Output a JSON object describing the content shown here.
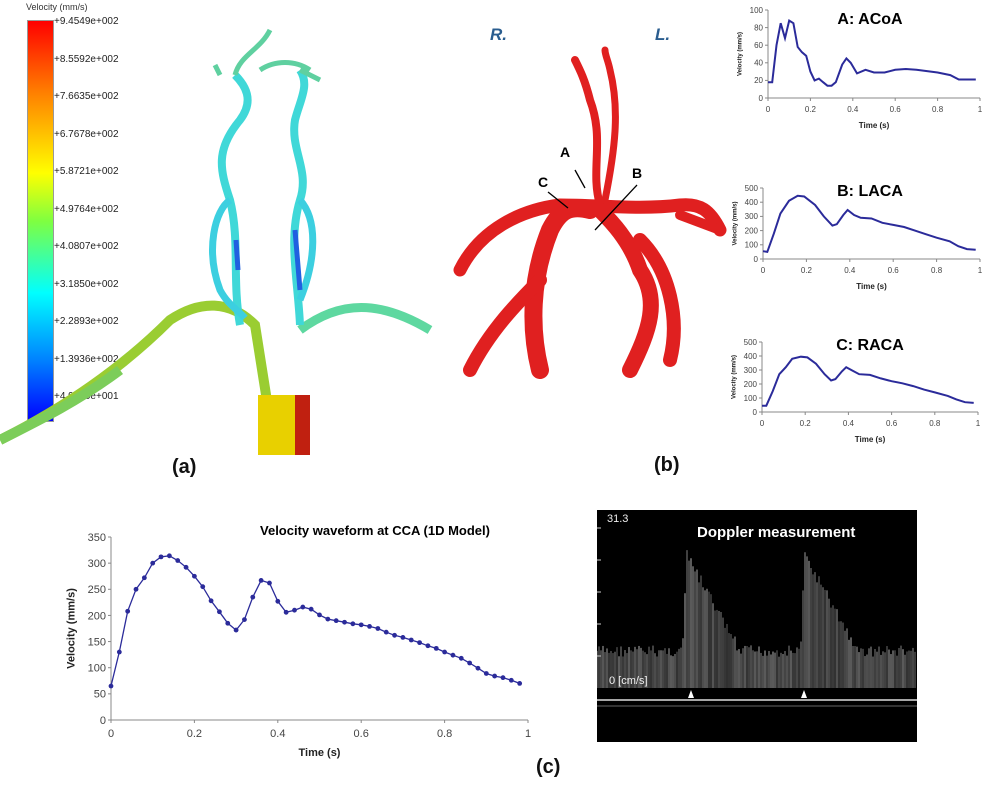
{
  "panel_a": {
    "label": "(a)",
    "colorbar": {
      "title": "Velocity (mm/s)",
      "labels": [
        "+9.4549e+002",
        "+8.5592e+002",
        "+7.6635e+002",
        "+6.7678e+002",
        "+5.8721e+002",
        "+4.9764e+002",
        "+4.0807e+002",
        "+3.1850e+002",
        "+2.2893e+002",
        "+1.3936e+002",
        "+4.9790e+001"
      ],
      "colors": [
        "#ff0000",
        "#ffff00",
        "#00ffff",
        "#0000ff"
      ]
    }
  },
  "panel_b": {
    "label": "(b)",
    "side_right": "R.",
    "side_left": "L.",
    "markers": [
      "A",
      "B",
      "C"
    ],
    "vessel_color": "#e02020"
  },
  "panel_c": {
    "label": "(c)",
    "doppler": {
      "title": "Doppler measurement",
      "top_value": "31.3",
      "baseline": "0 [cm/s]"
    }
  },
  "chart_data": [
    {
      "id": "acoa",
      "type": "line",
      "title": "A: ACoA",
      "xlabel": "Time (s)",
      "ylabel": "Velocity (mm/s)",
      "xlim": [
        0,
        1
      ],
      "ylim": [
        0,
        100
      ],
      "xticks": [
        "0",
        "0.2",
        "0.4",
        "0.6",
        "0.8",
        "1"
      ],
      "yticks": [
        "0",
        "20",
        "40",
        "60",
        "80",
        "100"
      ],
      "color": "#2b2b9a",
      "markers": false,
      "x": [
        0,
        0.02,
        0.04,
        0.06,
        0.08,
        0.1,
        0.12,
        0.14,
        0.16,
        0.18,
        0.2,
        0.22,
        0.24,
        0.26,
        0.28,
        0.3,
        0.32,
        0.35,
        0.37,
        0.39,
        0.42,
        0.46,
        0.5,
        0.55,
        0.6,
        0.65,
        0.7,
        0.8,
        0.86,
        0.9,
        0.98
      ],
      "y": [
        18,
        18,
        60,
        85,
        68,
        88,
        85,
        58,
        52,
        48,
        30,
        20,
        22,
        18,
        14,
        14,
        18,
        38,
        45,
        40,
        28,
        32,
        29,
        29,
        32,
        33,
        32,
        29,
        26,
        21,
        21
      ]
    },
    {
      "id": "laca",
      "type": "line",
      "title": "B: LACA",
      "xlabel": "Time (s)",
      "ylabel": "Velocity (mm/s)",
      "xlim": [
        0,
        1
      ],
      "ylim": [
        0,
        500
      ],
      "xticks": [
        "0",
        "0.2",
        "0.4",
        "0.6",
        "0.8",
        "1"
      ],
      "yticks": [
        "0",
        "100",
        "200",
        "300",
        "400",
        "500"
      ],
      "color": "#2b2b9a",
      "markers": false,
      "x": [
        0,
        0.02,
        0.05,
        0.08,
        0.12,
        0.16,
        0.19,
        0.24,
        0.28,
        0.32,
        0.34,
        0.37,
        0.39,
        0.42,
        0.45,
        0.5,
        0.55,
        0.6,
        0.65,
        0.7,
        0.75,
        0.8,
        0.86,
        0.9,
        0.94,
        0.98
      ],
      "y": [
        55,
        50,
        180,
        320,
        410,
        445,
        440,
        380,
        300,
        235,
        245,
        310,
        345,
        310,
        290,
        285,
        255,
        240,
        225,
        200,
        175,
        150,
        125,
        90,
        70,
        65
      ]
    },
    {
      "id": "raca",
      "type": "line",
      "title": "C: RACA",
      "xlabel": "Time (s)",
      "ylabel": "Velocity (mm/s)",
      "xlim": [
        0,
        1
      ],
      "ylim": [
        0,
        500
      ],
      "xticks": [
        "0",
        "0.2",
        "0.4",
        "0.6",
        "0.8",
        "1"
      ],
      "yticks": [
        "0",
        "100",
        "200",
        "300",
        "400",
        "500"
      ],
      "color": "#2b2b9a",
      "markers": false,
      "x": [
        0,
        0.02,
        0.05,
        0.08,
        0.11,
        0.14,
        0.18,
        0.21,
        0.25,
        0.29,
        0.32,
        0.34,
        0.37,
        0.39,
        0.42,
        0.45,
        0.5,
        0.55,
        0.6,
        0.65,
        0.7,
        0.75,
        0.8,
        0.86,
        0.9,
        0.94,
        0.98
      ],
      "y": [
        45,
        45,
        150,
        270,
        320,
        380,
        395,
        390,
        345,
        270,
        225,
        235,
        290,
        320,
        295,
        270,
        265,
        240,
        220,
        205,
        185,
        160,
        140,
        115,
        90,
        70,
        65
      ]
    },
    {
      "id": "cca",
      "type": "line",
      "title": "Velocity waveform at CCA (1D Model)",
      "xlabel": "Time (s)",
      "ylabel": "Velocity (mm/s)",
      "xlim": [
        0,
        1
      ],
      "ylim": [
        0,
        350
      ],
      "xticks": [
        "0",
        "0.2",
        "0.4",
        "0.6",
        "0.8",
        "1"
      ],
      "yticks": [
        "0",
        "50",
        "100",
        "150",
        "200",
        "250",
        "300",
        "350"
      ],
      "color": "#2b2b9a",
      "markers": true,
      "x": [
        0,
        0.02,
        0.04,
        0.06,
        0.08,
        0.1,
        0.12,
        0.14,
        0.16,
        0.18,
        0.2,
        0.22,
        0.24,
        0.26,
        0.28,
        0.3,
        0.32,
        0.34,
        0.36,
        0.38,
        0.4,
        0.42,
        0.44,
        0.46,
        0.48,
        0.5,
        0.52,
        0.54,
        0.56,
        0.58,
        0.6,
        0.62,
        0.64,
        0.66,
        0.68,
        0.7,
        0.72,
        0.74,
        0.76,
        0.78,
        0.8,
        0.82,
        0.84,
        0.86,
        0.88,
        0.9,
        0.92,
        0.94,
        0.96,
        0.98
      ],
      "y": [
        65,
        130,
        208,
        250,
        272,
        300,
        312,
        314,
        305,
        292,
        275,
        255,
        228,
        207,
        185,
        172,
        192,
        235,
        267,
        262,
        227,
        206,
        210,
        216,
        212,
        201,
        193,
        190,
        187,
        184,
        182,
        179,
        175,
        168,
        162,
        158,
        153,
        148,
        142,
        137,
        130,
        124,
        118,
        109,
        99,
        89,
        84,
        81,
        76,
        70
      ]
    }
  ]
}
